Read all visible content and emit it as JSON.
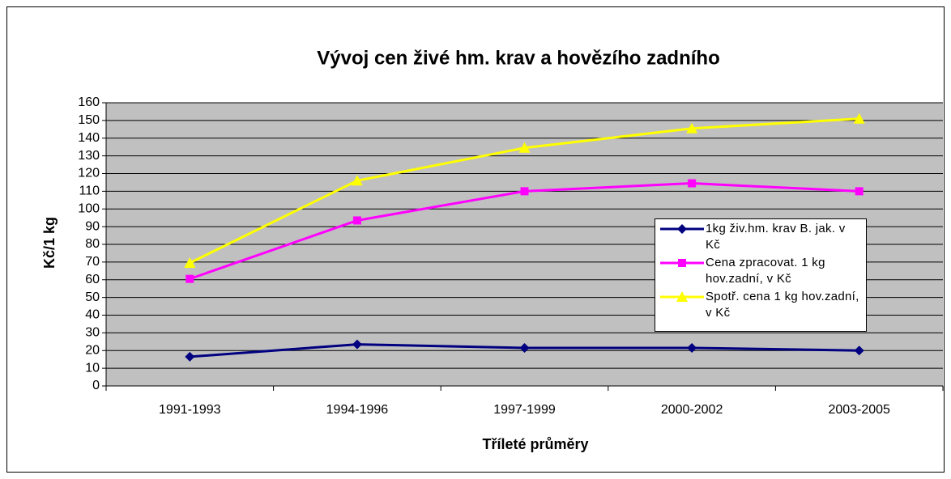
{
  "chart_data": {
    "type": "line",
    "title": "Vývoj cen živé hm. krav a hovězího zadního",
    "x_label": "Tříleté průměry",
    "y_label": "Kč/1 kg",
    "categories": [
      "1991-1993",
      "1994-1996",
      "1997-1999",
      "2000-2002",
      "2003-2005"
    ],
    "series": [
      {
        "name": "1kg živ.hm. krav B. jak. v Kč",
        "color": "#000080",
        "marker": "diamond",
        "values": [
          16.5,
          23.5,
          21.5,
          21.5,
          20
        ]
      },
      {
        "name": "Cena zpracovat. 1 kg hov.zadní, v Kč",
        "color": "#ff00ff",
        "marker": "square",
        "values": [
          60.5,
          93.5,
          110,
          114.5,
          110
        ]
      },
      {
        "name": "Spotř. cena 1 kg hov.zadní, v Kč",
        "color": "#ffff00",
        "marker": "triangle",
        "values": [
          69.5,
          116,
          134.5,
          145.5,
          151
        ]
      }
    ],
    "ylim": [
      0,
      160
    ],
    "yticks": [
      0,
      10,
      20,
      30,
      40,
      50,
      60,
      70,
      80,
      90,
      100,
      110,
      120,
      130,
      140,
      150,
      160
    ],
    "grid": true
  }
}
